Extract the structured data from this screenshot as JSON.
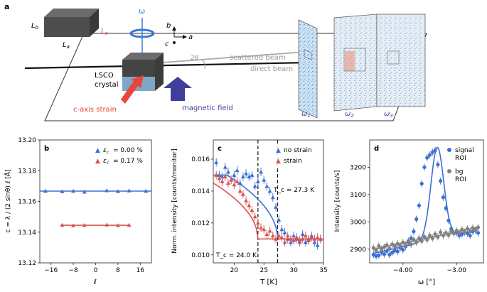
{
  "panel_a": {
    "label": "a",
    "lb": "L",
    "lb_sub": "b",
    "lc": "L",
    "lc_sub": "c",
    "la": "L",
    "la_sub": "a",
    "omega": "ω",
    "axis_b": "b",
    "axis_a": "a",
    "axis_c": "c",
    "two_theta": "2θ",
    "scattered_beam": "scattered beam",
    "direct_beam": "direct beam",
    "lsco": "LSCO",
    "crystal": "crystal",
    "strain_label": "c-axis strain",
    "field_label": "magnetic field",
    "omega1": "ω",
    "omega1_sub": "1",
    "omega2": "ω",
    "omega2_sub": "2",
    "omega3": "ω",
    "omega3_sub": "3",
    "colors": {
      "strain_arrow": "#e8453c",
      "field_arrow": "#3e3f9c",
      "omega": "#3a7bd5",
      "lc_color": "#e8453c"
    }
  },
  "chart_data": [
    {
      "type": "scatter",
      "panel": "b",
      "xlabel": "ℓ",
      "ylabel": "c = λ / (2 sinθ) ℓ [Å]",
      "xlim": [
        -20,
        20
      ],
      "ylim": [
        13.12,
        13.2
      ],
      "xticks": [
        "−16",
        "−8",
        "0",
        "8",
        "16"
      ],
      "xtick_values": [
        -16,
        -8,
        0,
        8,
        16
      ],
      "yticks": [
        "13.12",
        "13.14",
        "13.16",
        "13.18",
        "13.20"
      ],
      "ytick_values": [
        13.12,
        13.14,
        13.16,
        13.18,
        13.2
      ],
      "legend_placement": "top-right",
      "series": [
        {
          "name": "ε_c = 0.00 %",
          "legend": "= 0.00 %",
          "color": "#3a6fd8",
          "fit": [
            13.1667,
            13.1667
          ],
          "x": [
            -18,
            -12,
            -8,
            -4,
            4,
            8,
            12,
            18
          ],
          "y": [
            13.1668,
            13.1665,
            13.1668,
            13.1662,
            13.1671,
            13.1666,
            13.167,
            13.1668
          ]
        },
        {
          "name": "ε_c = 0.17 %",
          "legend": "= 0.17 %",
          "color": "#d9534f",
          "fit": [
            13.1445,
            13.1445
          ],
          "x": [
            -12,
            -8,
            -4,
            4,
            8,
            12
          ],
          "y": [
            13.1447,
            13.1443,
            13.1445,
            13.1448,
            13.1444,
            13.1446
          ]
        }
      ]
    },
    {
      "type": "scatter",
      "panel": "c",
      "xlabel": "T [K]",
      "ylabel": "Norm. intensity [counts/monitor]",
      "xlim": [
        16.5,
        35
      ],
      "ylim": [
        0.0095,
        0.0172
      ],
      "xticks": [
        "20",
        "25",
        "30",
        "35"
      ],
      "xtick_values": [
        20,
        25,
        30,
        35
      ],
      "yticks": [
        "0.010",
        "0.012",
        "0.014",
        "0.016"
      ],
      "ytick_values": [
        0.01,
        0.012,
        0.014,
        0.016
      ],
      "legend_placement": "top-right",
      "tc_labels": [
        "T_c = 27.3 K",
        "T_c = 24.0 K"
      ],
      "tc_values": [
        27.3,
        24.0
      ],
      "series": [
        {
          "name": "no strain",
          "color": "#3a6fd8",
          "fit_high": 0.015,
          "fit_low": 0.011,
          "tc": 27.3,
          "x": [
            17.0,
            17.5,
            18.0,
            18.5,
            19.0,
            19.5,
            20.0,
            20.5,
            21.0,
            21.5,
            22.0,
            22.5,
            23.0,
            23.5,
            24.0,
            24.5,
            25.0,
            25.5,
            26.0,
            26.5,
            27.0,
            27.5,
            28.0,
            28.5,
            29.0,
            29.5,
            30.0,
            30.5,
            31.0,
            31.5,
            32.0,
            32.5,
            33.0,
            33.5,
            34.0,
            34.5
          ],
          "y": [
            0.0158,
            0.015,
            0.0149,
            0.0155,
            0.0152,
            0.0147,
            0.015,
            0.0153,
            0.0145,
            0.0149,
            0.0151,
            0.0149,
            0.015,
            0.0143,
            0.0146,
            0.0152,
            0.0147,
            0.0143,
            0.014,
            0.0136,
            0.013,
            0.0122,
            0.0116,
            0.0114,
            0.011,
            0.0108,
            0.0112,
            0.011,
            0.0109,
            0.0113,
            0.0108,
            0.011,
            0.0112,
            0.0108,
            0.0106,
            0.011
          ]
        },
        {
          "name": "strain",
          "color": "#d9534f",
          "fit_high": 0.0145,
          "fit_low": 0.011,
          "tc": 24.0,
          "x": [
            17.0,
            17.5,
            18.0,
            18.5,
            19.0,
            19.5,
            20.0,
            20.5,
            21.0,
            21.5,
            22.0,
            22.5,
            23.0,
            23.5,
            24.0,
            24.5,
            25.0,
            25.5,
            26.0,
            26.5,
            27.0,
            27.5,
            28.0,
            28.5,
            29.0,
            29.5,
            30.0,
            30.5,
            31.0,
            31.5,
            32.0,
            32.5,
            33.0,
            33.5,
            34.0,
            34.5
          ],
          "y": [
            0.015,
            0.0148,
            0.0146,
            0.0149,
            0.0145,
            0.0147,
            0.0144,
            0.0146,
            0.014,
            0.0138,
            0.0134,
            0.0131,
            0.0128,
            0.0124,
            0.012,
            0.0117,
            0.0116,
            0.0113,
            0.0115,
            0.0112,
            0.011,
            0.0112,
            0.0111,
            0.0108,
            0.0112,
            0.011,
            0.0109,
            0.0111,
            0.0108,
            0.011,
            0.0112,
            0.0109,
            0.0111,
            0.011,
            0.0111,
            0.011
          ]
        }
      ]
    },
    {
      "type": "scatter",
      "panel": "d",
      "xlabel": "ω [°]",
      "ylabel": "Intensity [counts/s]",
      "xlim": [
        -4.62,
        -2.5
      ],
      "ylim": [
        2850,
        3300
      ],
      "xticks": [
        "−4.00",
        "−3.00"
      ],
      "xtick_values": [
        -4.0,
        -3.0
      ],
      "yticks": [
        "2900",
        "3000",
        "3100",
        "3200"
      ],
      "ytick_values": [
        2900,
        3000,
        3100,
        3200
      ],
      "legend_placement": "top-right",
      "series": [
        {
          "name": "signal ROI",
          "legend_lines": [
            "signal",
            "ROI"
          ],
          "color": "#3a6fd8",
          "peak": {
            "center": -3.36,
            "width": 0.12,
            "amplitude": 335
          },
          "baseline": [
            2885,
            2972
          ],
          "x": [
            -4.55,
            -4.5,
            -4.45,
            -4.4,
            -4.35,
            -4.3,
            -4.25,
            -4.2,
            -4.15,
            -4.1,
            -4.05,
            -4.0,
            -3.95,
            -3.9,
            -3.85,
            -3.8,
            -3.75,
            -3.7,
            -3.65,
            -3.6,
            -3.55,
            -3.5,
            -3.45,
            -3.4,
            -3.35,
            -3.3,
            -3.25,
            -3.2,
            -3.15,
            -3.1,
            -3.05,
            -3.0,
            -2.95,
            -2.9,
            -2.85,
            -2.8,
            -2.75,
            -2.7,
            -2.65,
            -2.6
          ],
          "y": [
            2880,
            2875,
            2878,
            2890,
            2882,
            2893,
            2880,
            2888,
            2895,
            2892,
            2905,
            2898,
            2910,
            2925,
            2940,
            2965,
            3010,
            3060,
            3140,
            3200,
            3235,
            3245,
            3255,
            3262,
            3210,
            3150,
            3090,
            3050,
            3005,
            2975,
            2958,
            2960,
            2950,
            2955,
            2962,
            2958,
            2950,
            2965,
            2970,
            2960
          ]
        },
        {
          "name": "bg ROI",
          "legend_lines": [
            "bg",
            "ROI"
          ],
          "color": "#808080",
          "trend": [
            2900,
            2980
          ],
          "x": [
            -4.55,
            -4.5,
            -4.45,
            -4.4,
            -4.35,
            -4.3,
            -4.25,
            -4.2,
            -4.15,
            -4.1,
            -4.05,
            -4.0,
            -3.95,
            -3.9,
            -3.85,
            -3.8,
            -3.75,
            -3.7,
            -3.65,
            -3.6,
            -3.55,
            -3.5,
            -3.45,
            -3.4,
            -3.35,
            -3.3,
            -3.25,
            -3.2,
            -3.15,
            -3.1,
            -3.05,
            -3.0,
            -2.95,
            -2.9,
            -2.85,
            -2.8,
            -2.75,
            -2.7,
            -2.65,
            -2.6
          ],
          "y": [
            2905,
            2895,
            2912,
            2900,
            2908,
            2915,
            2902,
            2918,
            2910,
            2920,
            2912,
            2925,
            2915,
            2930,
            2918,
            2935,
            2925,
            2940,
            2930,
            2945,
            2935,
            2950,
            2940,
            2955,
            2945,
            2962,
            2950,
            2960,
            2952,
            2965,
            2958,
            2968,
            2960,
            2972,
            2962,
            2975,
            2965,
            2978,
            2970,
            2980
          ]
        }
      ]
    }
  ]
}
